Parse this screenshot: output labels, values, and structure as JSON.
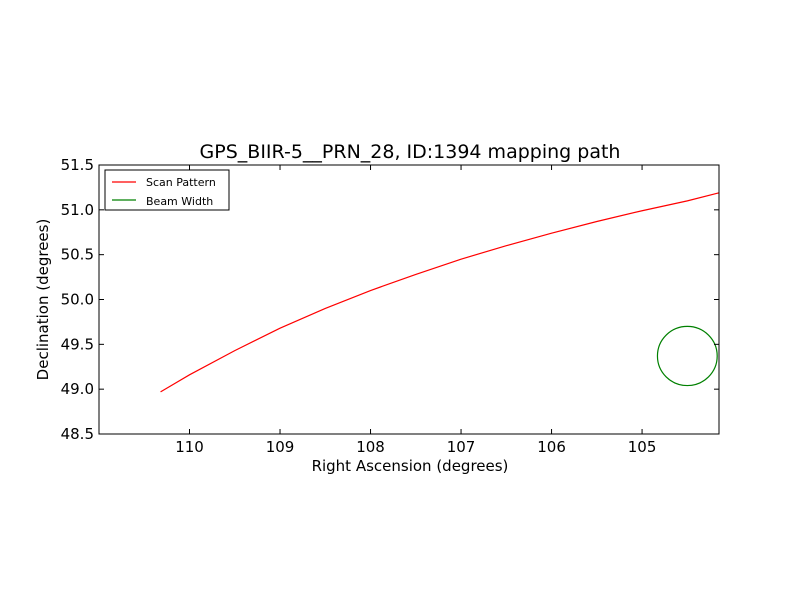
{
  "chart_data": {
    "type": "line",
    "title": "GPS_BIIR-5__PRN_28, ID:1394 mapping path",
    "xlabel": "Right Ascension (degrees)",
    "ylabel": "Declination (degrees)",
    "xlim": [
      111.0,
      104.15
    ],
    "ylim": [
      48.5,
      51.5
    ],
    "x_inverted": true,
    "xticks": [
      110,
      109,
      108,
      107,
      106,
      105
    ],
    "xtick_labels": [
      "110",
      "109",
      "108",
      "107",
      "106",
      "105"
    ],
    "yticks": [
      48.5,
      49.0,
      49.5,
      50.0,
      50.5,
      51.0,
      51.5
    ],
    "ytick_labels": [
      "48.5",
      "49.0",
      "49.5",
      "50.0",
      "50.5",
      "51.0",
      "51.5"
    ],
    "grid": false,
    "legend_position": "top-left",
    "series": [
      {
        "name": "Scan Pattern",
        "color": "#ff0000",
        "x": [
          110.32,
          110.0,
          109.5,
          109.0,
          108.5,
          108.0,
          107.5,
          107.0,
          106.5,
          106.0,
          105.5,
          105.0,
          104.5,
          104.15
        ],
        "y": [
          48.97,
          49.16,
          49.43,
          49.68,
          49.9,
          50.1,
          50.28,
          50.45,
          50.6,
          50.74,
          50.87,
          50.99,
          51.1,
          51.19
        ]
      },
      {
        "name": "Beam Width",
        "color": "#008000",
        "shape": "circle",
        "center": [
          104.5,
          49.37
        ],
        "radius_deg": 0.33
      }
    ]
  }
}
